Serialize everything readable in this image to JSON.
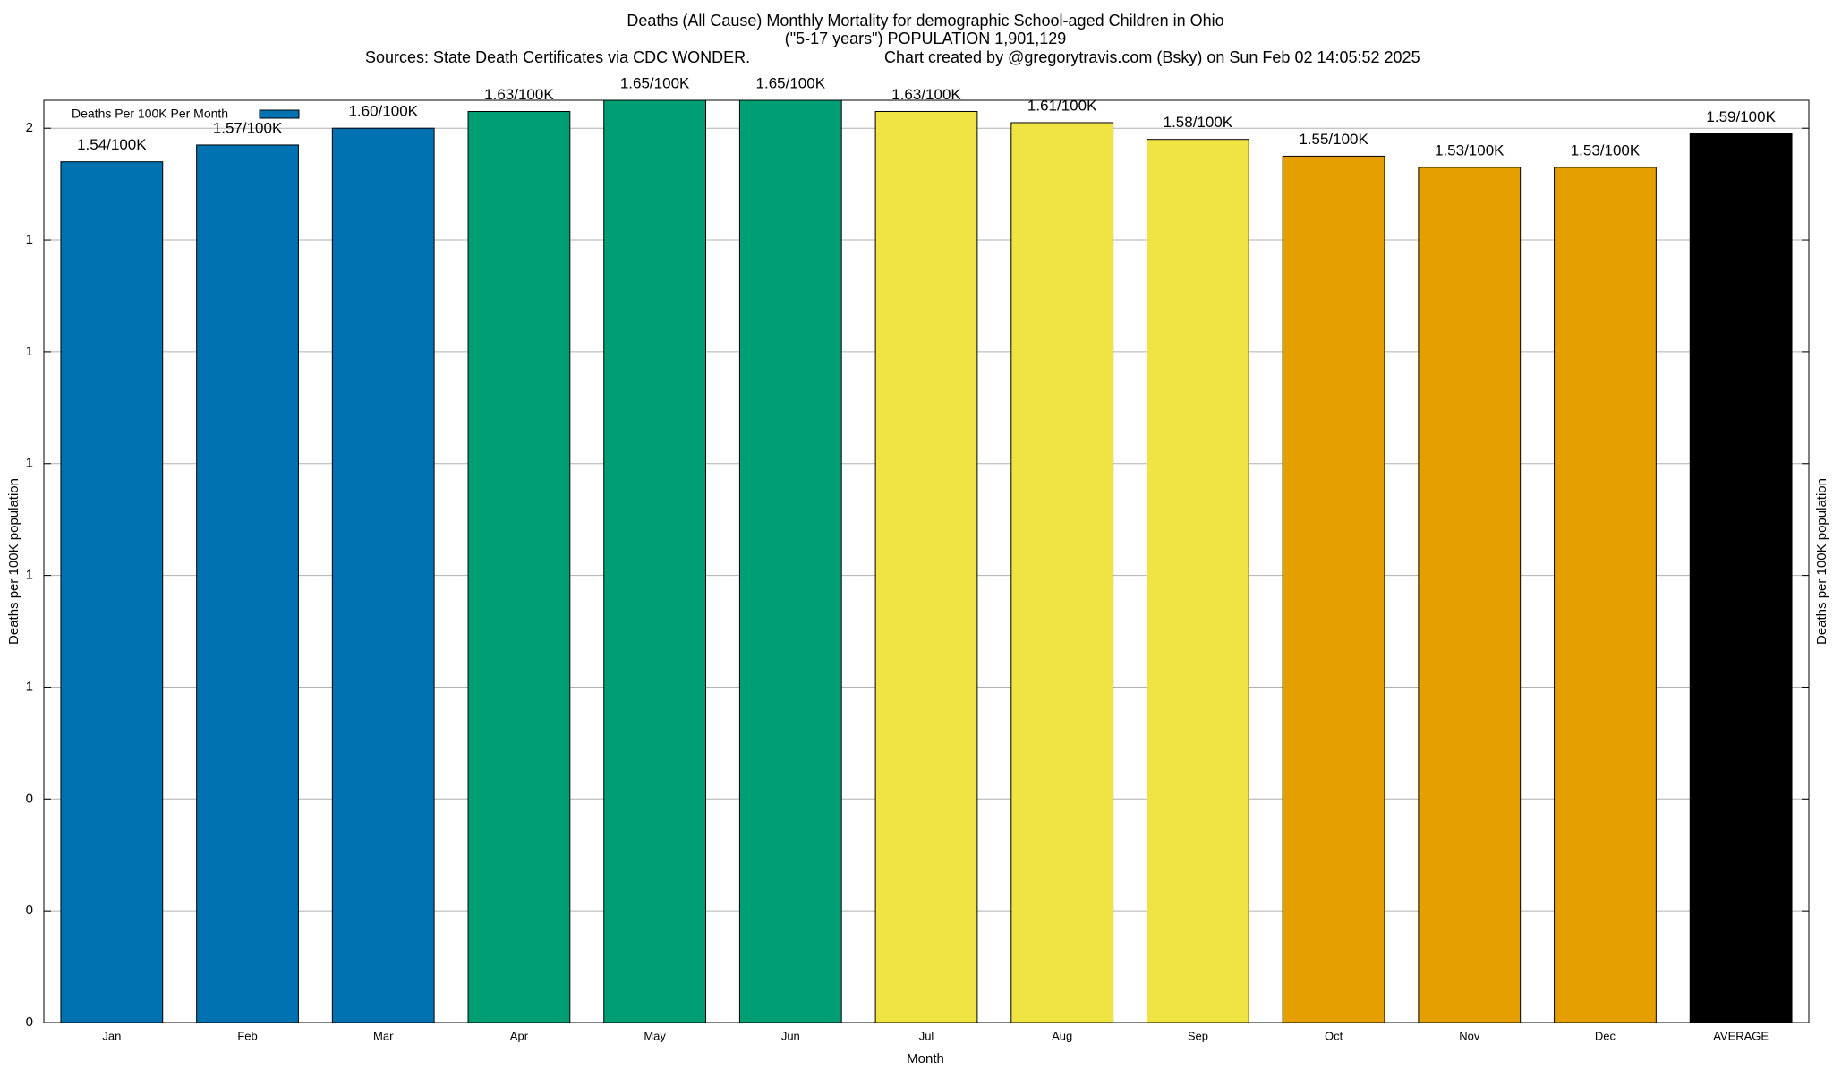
{
  "chart_data": {
    "type": "bar",
    "title": "Deaths (All Cause) Monthly Mortality for demographic School-aged Children in Ohio",
    "subtitle": "(\"5-17 years\") POPULATION 1,901,129",
    "sources": "Sources: State Death Certificates via CDC WONDER.",
    "credit": "Chart created by @gregorytravis.com (Bsky) on Sun Feb 02 14:05:52 2025",
    "xlabel": "Month",
    "ylabel": "Deaths per 100K population",
    "y2label": "Deaths per 100K population",
    "categories": [
      "Jan",
      "Feb",
      "Mar",
      "Apr",
      "May",
      "Jun",
      "Jul",
      "Aug",
      "Sep",
      "Oct",
      "Nov",
      "Dec",
      "AVERAGE"
    ],
    "series": [
      {
        "name": "Deaths Per 100K Per Month",
        "color": "#0072b2",
        "colors": [
          "#0072b2",
          "#0072b2",
          "#0072b2",
          "#009e73",
          "#009e73",
          "#009e73",
          "#f0e442",
          "#f0e442",
          "#f0e442",
          "#e69f00",
          "#e69f00",
          "#e69f00",
          "#000000"
        ],
        "values": [
          1.54,
          1.57,
          1.6,
          1.63,
          1.65,
          1.65,
          1.63,
          1.61,
          1.58,
          1.55,
          1.53,
          1.53,
          1.59
        ],
        "value_labels": [
          "1.54/100K",
          "1.57/100K",
          "1.60/100K",
          "1.63/100K",
          "1.65/100K",
          "1.65/100K",
          "1.63/100K",
          "1.61/100K",
          "1.58/100K",
          "1.55/100K",
          "1.53/100K",
          "1.53/100K",
          "1.59/100K"
        ]
      }
    ],
    "ylim": [
      0,
      1.65
    ],
    "yticks": [
      0,
      {
        "value": 0.2,
        "label": "0"
      },
      {
        "value": 0.4,
        "label": "0"
      },
      {
        "value": 0.6,
        "label": "1"
      },
      {
        "value": 0.8,
        "label": "1"
      },
      1,
      {
        "value": 1.2,
        "label": "1"
      },
      {
        "value": 1.4,
        "label": "1"
      },
      {
        "value": 1.6,
        "label": "2"
      }
    ],
    "grid": true,
    "legend": "upper left"
  }
}
